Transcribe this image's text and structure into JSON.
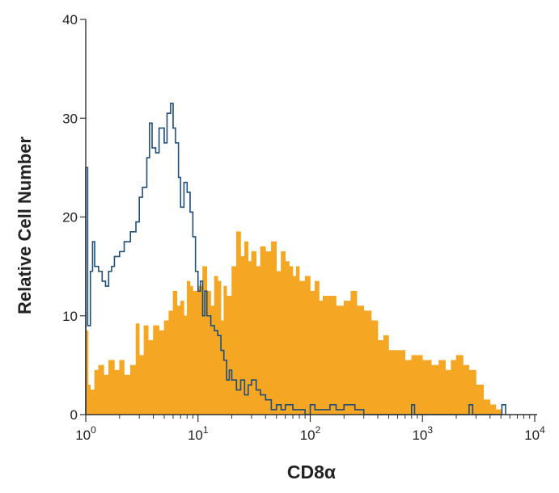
{
  "chart_data": {
    "type": "histogram",
    "xlabel": "CD8α",
    "ylabel": "Relative Cell Number",
    "x_scale": "log",
    "xlim": [
      1,
      10000
    ],
    "ylim": [
      0,
      40
    ],
    "y_ticks": [
      0,
      10,
      20,
      30,
      40
    ],
    "x_ticks": [
      {
        "base": "10",
        "exp": "0",
        "value": 1
      },
      {
        "base": "10",
        "exp": "1",
        "value": 10
      },
      {
        "base": "10",
        "exp": "2",
        "value": 100
      },
      {
        "base": "10",
        "exp": "3",
        "value": 1000
      },
      {
        "base": "10",
        "exp": "4",
        "value": 10000
      }
    ],
    "grid": false,
    "legend": "none",
    "series": [
      {
        "style": "filled",
        "color": "#f5a623",
        "points": [
          [
            1.0,
            8.5
          ],
          [
            1.05,
            3.0
          ],
          [
            1.1,
            2.5
          ],
          [
            1.2,
            4.5
          ],
          [
            1.3,
            5.0
          ],
          [
            1.45,
            4.0
          ],
          [
            1.6,
            5.5
          ],
          [
            1.8,
            4.5
          ],
          [
            2.0,
            5.5
          ],
          [
            2.2,
            4.0
          ],
          [
            2.5,
            5.0
          ],
          [
            2.8,
            9.2
          ],
          [
            3.0,
            6.0
          ],
          [
            3.3,
            9.0
          ],
          [
            3.6,
            7.5
          ],
          [
            4.0,
            9.0
          ],
          [
            4.5,
            8.5
          ],
          [
            5.0,
            9.5
          ],
          [
            5.5,
            10.5
          ],
          [
            6.0,
            12.5
          ],
          [
            6.5,
            11.0
          ],
          [
            7.0,
            11.5
          ],
          [
            7.5,
            10.0
          ],
          [
            8.0,
            13.5
          ],
          [
            8.5,
            13.0
          ],
          [
            9.0,
            12.5
          ],
          [
            10.0,
            13.0
          ],
          [
            11.0,
            15.0
          ],
          [
            12.0,
            12.5
          ],
          [
            13.0,
            11.0
          ],
          [
            14.0,
            14.0
          ],
          [
            15.0,
            13.5
          ],
          [
            16.0,
            9.5
          ],
          [
            17.0,
            13.0
          ],
          [
            18.0,
            12.0
          ],
          [
            20.0,
            15.0
          ],
          [
            22.0,
            18.5
          ],
          [
            24.0,
            16.0
          ],
          [
            26.0,
            17.5
          ],
          [
            28.0,
            15.5
          ],
          [
            30.0,
            16.5
          ],
          [
            33.0,
            15.0
          ],
          [
            36.0,
            17.0
          ],
          [
            40.0,
            16.5
          ],
          [
            45.0,
            17.5
          ],
          [
            50.0,
            14.5
          ],
          [
            55.0,
            16.5
          ],
          [
            60.0,
            15.5
          ],
          [
            65.0,
            15.0
          ],
          [
            70.0,
            14.0
          ],
          [
            75.0,
            15.0
          ],
          [
            80.0,
            13.5
          ],
          [
            90.0,
            14.0
          ],
          [
            100.0,
            12.5
          ],
          [
            110.0,
            13.5
          ],
          [
            120.0,
            11.5
          ],
          [
            130.0,
            12.0
          ],
          [
            150.0,
            12.0
          ],
          [
            170.0,
            11.0
          ],
          [
            200.0,
            11.5
          ],
          [
            230.0,
            12.5
          ],
          [
            260.0,
            11.0
          ],
          [
            300.0,
            10.5
          ],
          [
            350.0,
            9.5
          ],
          [
            400.0,
            7.5
          ],
          [
            450.0,
            8.0
          ],
          [
            500.0,
            6.5
          ],
          [
            600.0,
            6.5
          ],
          [
            700.0,
            5.5
          ],
          [
            800.0,
            6.0
          ],
          [
            900.0,
            6.0
          ],
          [
            1000.0,
            5.5
          ],
          [
            1200.0,
            5.0
          ],
          [
            1400.0,
            5.5
          ],
          [
            1600.0,
            4.5
          ],
          [
            1800.0,
            5.5
          ],
          [
            2000.0,
            6.0
          ],
          [
            2300.0,
            5.0
          ],
          [
            2600.0,
            4.5
          ],
          [
            3000.0,
            3.0
          ],
          [
            3500.0,
            1.5
          ],
          [
            4000.0,
            1.0
          ],
          [
            4500.0,
            0.5
          ],
          [
            5000.0,
            0.0
          ]
        ]
      },
      {
        "style": "outline",
        "color": "#1f4e79",
        "points": [
          [
            1.0,
            25.0
          ],
          [
            1.04,
            9.0
          ],
          [
            1.1,
            14.5
          ],
          [
            1.15,
            17.5
          ],
          [
            1.2,
            15.0
          ],
          [
            1.3,
            14.5
          ],
          [
            1.4,
            13.5
          ],
          [
            1.5,
            13.0
          ],
          [
            1.6,
            14.5
          ],
          [
            1.7,
            15.0
          ],
          [
            1.8,
            16.0
          ],
          [
            2.0,
            16.5
          ],
          [
            2.2,
            17.5
          ],
          [
            2.5,
            18.5
          ],
          [
            2.8,
            19.5
          ],
          [
            3.0,
            22.0
          ],
          [
            3.2,
            23.0
          ],
          [
            3.5,
            26.0
          ],
          [
            3.7,
            29.5
          ],
          [
            3.9,
            27.0
          ],
          [
            4.2,
            26.5
          ],
          [
            4.5,
            29.0
          ],
          [
            5.0,
            27.5
          ],
          [
            5.3,
            30.5
          ],
          [
            5.7,
            31.5
          ],
          [
            6.0,
            29.0
          ],
          [
            6.3,
            27.5
          ],
          [
            6.7,
            24.0
          ],
          [
            7.0,
            21.0
          ],
          [
            7.5,
            23.5
          ],
          [
            8.0,
            22.5
          ],
          [
            8.5,
            20.5
          ],
          [
            9.0,
            18.0
          ],
          [
            9.5,
            14.5
          ],
          [
            10.0,
            12.5
          ],
          [
            10.5,
            13.5
          ],
          [
            11.0,
            10.0
          ],
          [
            11.5,
            12.5
          ],
          [
            12.0,
            10.0
          ],
          [
            13.0,
            9.0
          ],
          [
            14.0,
            8.5
          ],
          [
            15.0,
            8.0
          ],
          [
            16.0,
            6.5
          ],
          [
            17.0,
            5.5
          ],
          [
            18.0,
            3.5
          ],
          [
            19.0,
            4.5
          ],
          [
            20.0,
            3.5
          ],
          [
            22.0,
            2.5
          ],
          [
            24.0,
            3.5
          ],
          [
            26.0,
            2.0
          ],
          [
            28.0,
            3.0
          ],
          [
            30.0,
            3.5
          ],
          [
            33.0,
            2.5
          ],
          [
            36.0,
            2.0
          ],
          [
            40.0,
            1.5
          ],
          [
            45.0,
            0.5
          ],
          [
            50.0,
            1.0
          ],
          [
            55.0,
            0.5
          ],
          [
            60.0,
            1.0
          ],
          [
            70.0,
            0.5
          ],
          [
            80.0,
            0.5
          ],
          [
            90.0,
            0.0
          ],
          [
            100.0,
            1.0
          ],
          [
            110.0,
            0.5
          ],
          [
            130.0,
            0.5
          ],
          [
            150.0,
            1.0
          ],
          [
            170.0,
            0.5
          ],
          [
            200.0,
            1.0
          ],
          [
            250.0,
            0.5
          ],
          [
            300.0,
            0.0
          ],
          [
            500.0,
            0.0
          ],
          [
            750.0,
            0.0
          ],
          [
            800.0,
            1.0
          ],
          [
            850.0,
            0.0
          ],
          [
            2400.0,
            0.0
          ],
          [
            2600.0,
            1.0
          ],
          [
            2800.0,
            0.0
          ],
          [
            4800.0,
            0.0
          ],
          [
            5100.0,
            1.0
          ],
          [
            5500.0,
            0.0
          ]
        ]
      }
    ]
  }
}
